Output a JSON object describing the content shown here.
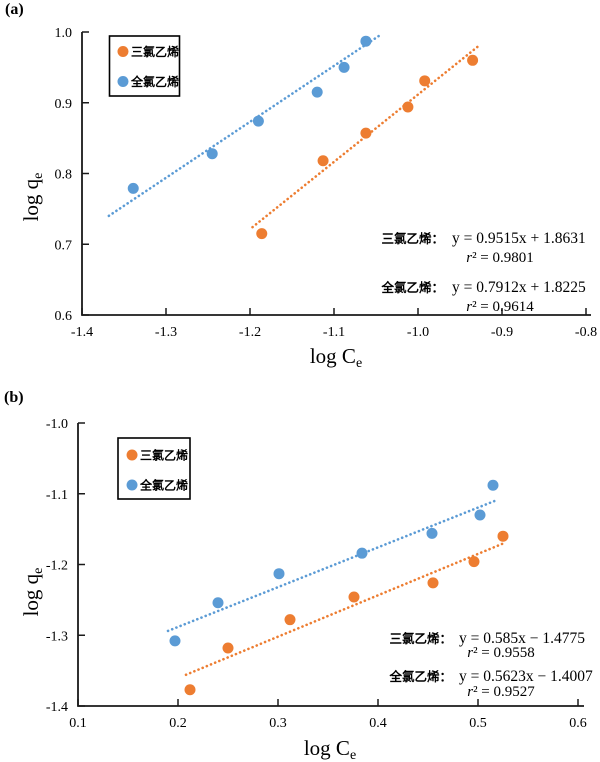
{
  "figure": {
    "background": "#ffffff"
  },
  "palette": {
    "orange": "#ED7D31",
    "blue": "#5B9BD5",
    "axis": "#1a1a1a",
    "text": "#000000"
  },
  "chart_data": [
    {
      "type": "scatter",
      "panel": "(a)",
      "xlabel": "log C",
      "xlabel_sub": "e",
      "ylabel": "log q",
      "ylabel_sub": "e",
      "xlim": [
        -1.4,
        -0.8
      ],
      "ylim": [
        0.6,
        1.0
      ],
      "x_ticks": [
        "-1.4",
        "-1.3",
        "-1.2",
        "-1.1",
        "-1.0",
        "-0.9",
        "-0.8"
      ],
      "y_ticks": [
        "0.6",
        "0.7",
        "0.8",
        "0.9",
        "1.0"
      ],
      "grid": false,
      "legend_position": "top-left-inside",
      "legend": [
        {
          "label": "三氯乙烯",
          "color": "orange"
        },
        {
          "label": "全氯乙烯",
          "color": "blue"
        }
      ],
      "series": [
        {
          "name": "三氯乙烯",
          "color": "orange",
          "points": [
            [
              -1.186,
              0.715
            ],
            [
              -1.113,
              0.818
            ],
            [
              -1.062,
              0.857
            ],
            [
              -1.012,
              0.894
            ],
            [
              -0.992,
              0.931
            ],
            [
              -0.935,
              0.96
            ]
          ],
          "trendline": {
            "style": "dotted",
            "slope": 0.9515,
            "intercept": 1.8631,
            "x_range": [
              -1.197,
              -0.928
            ]
          }
        },
        {
          "name": "全氯乙烯",
          "color": "blue",
          "points": [
            [
              -1.339,
              0.779
            ],
            [
              -1.245,
              0.828
            ],
            [
              -1.19,
              0.874
            ],
            [
              -1.12,
              0.915
            ],
            [
              -1.088,
              0.95
            ],
            [
              -1.062,
              0.987
            ]
          ],
          "trendline": {
            "style": "dotted",
            "slope": 0.7912,
            "intercept": 1.8225,
            "x_range": [
              -1.368,
              -1.043
            ]
          }
        }
      ],
      "annotations": [
        {
          "label": "三氯乙烯：",
          "equation": "y = 0.9515x + 1.8631",
          "r2": "r² = 0.9801"
        },
        {
          "label": "全氯乙烯：",
          "equation": "y = 0.7912x + 1.8225",
          "r2": "r² = 0.9614"
        }
      ]
    },
    {
      "type": "scatter",
      "panel": "(b)",
      "xlabel": "log C",
      "xlabel_sub": "e",
      "ylabel": "log q",
      "ylabel_sub": "e",
      "xlim": [
        0.1,
        0.6
      ],
      "ylim": [
        -1.4,
        -1.0
      ],
      "x_ticks": [
        "0.1",
        "0.2",
        "0.3",
        "0.4",
        "0.5",
        "0.6"
      ],
      "y_ticks": [
        "-1.4",
        "-1.3",
        "-1.2",
        "-1.1",
        "-1.0"
      ],
      "grid": false,
      "legend_position": "top-left-inside",
      "legend": [
        {
          "label": "三氯乙烯",
          "color": "orange"
        },
        {
          "label": "全氯乙烯",
          "color": "blue"
        }
      ],
      "series": [
        {
          "name": "三氯乙烯",
          "color": "orange",
          "points": [
            [
              0.212,
              -1.377
            ],
            [
              0.25,
              -1.318
            ],
            [
              0.312,
              -1.278
            ],
            [
              0.376,
              -1.246
            ],
            [
              0.455,
              -1.226
            ],
            [
              0.496,
              -1.196
            ],
            [
              0.525,
              -1.16
            ]
          ],
          "trendline": {
            "style": "dotted",
            "slope": 0.585,
            "intercept": -1.4775,
            "x_range": [
              0.208,
              0.528
            ]
          }
        },
        {
          "name": "全氯乙烯",
          "color": "blue",
          "points": [
            [
              0.197,
              -1.308
            ],
            [
              0.24,
              -1.254
            ],
            [
              0.301,
              -1.213
            ],
            [
              0.384,
              -1.184
            ],
            [
              0.454,
              -1.156
            ],
            [
              0.502,
              -1.13
            ],
            [
              0.515,
              -1.088
            ]
          ],
          "trendline": {
            "style": "dotted",
            "slope": 0.5623,
            "intercept": -1.4007,
            "x_range": [
              0.19,
              0.517
            ]
          }
        }
      ],
      "annotations": [
        {
          "label": "三氯乙烯：",
          "equation": "y = 0.585x − 1.4775",
          "r2": "r² = 0.9558"
        },
        {
          "label": "全氯乙烯：",
          "equation": "y = 0.5623x − 1.4007",
          "r2": "r² = 0.9527"
        }
      ]
    }
  ]
}
